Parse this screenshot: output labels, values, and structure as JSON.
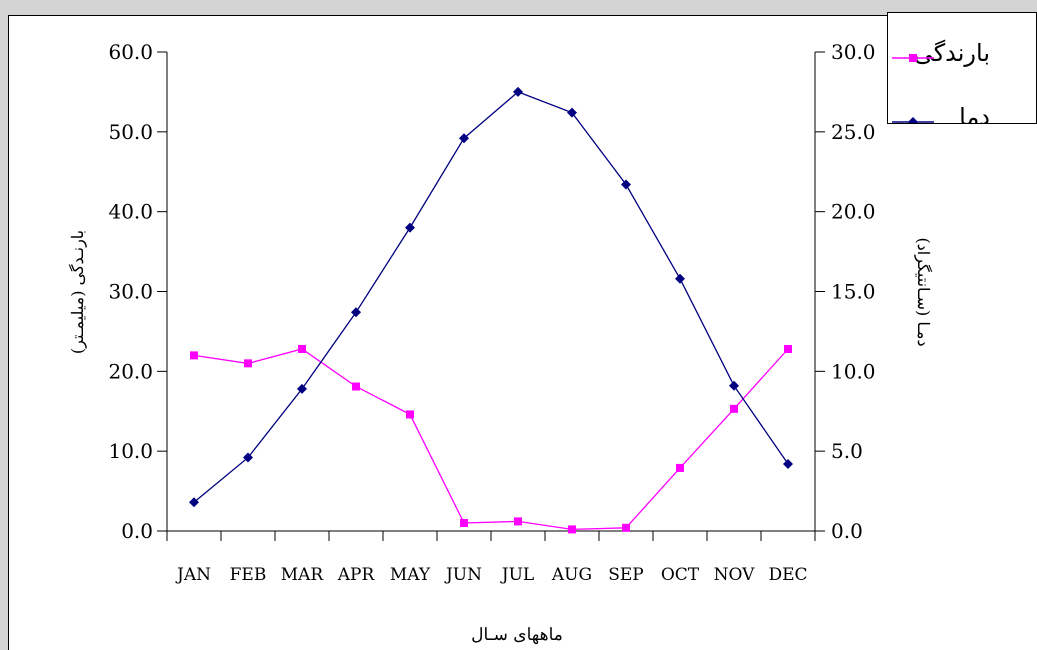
{
  "chart_data": {
    "type": "line",
    "title": "",
    "categories": [
      "JAN",
      "FEB",
      "MAR",
      "APR",
      "MAY",
      "JUN",
      "JUL",
      "AUG",
      "SEP",
      "OCT",
      "NOV",
      "DEC"
    ],
    "xlabel": "ماههای سـال",
    "y_left": {
      "label": "بارنـدگی (میلیمـتر)",
      "range": [
        0,
        60
      ],
      "ticks": [
        "0.0",
        "10.0",
        "20.0",
        "30.0",
        "40.0",
        "50.0",
        "60.0"
      ]
    },
    "y_right": {
      "label": "دمـا (سـانتیگراد)",
      "range": [
        0,
        30
      ],
      "ticks": [
        "0.0",
        "5.0",
        "10.0",
        "15.0",
        "20.0",
        "25.0",
        "30.0"
      ]
    },
    "series": [
      {
        "name": "بارندگی",
        "axis": "left",
        "color": "#ff00ff",
        "marker": "square",
        "values": [
          22.0,
          21.0,
          22.8,
          18.1,
          14.6,
          1.0,
          1.2,
          0.2,
          0.4,
          7.9,
          15.3,
          22.8
        ]
      },
      {
        "name": "دما",
        "axis": "right",
        "color": "#000080",
        "marker": "diamond",
        "values": [
          1.8,
          4.6,
          8.9,
          13.7,
          19.0,
          24.6,
          27.5,
          26.2,
          21.7,
          15.8,
          9.1,
          4.2
        ]
      }
    ],
    "legend_position": "top-right",
    "grid": false
  }
}
